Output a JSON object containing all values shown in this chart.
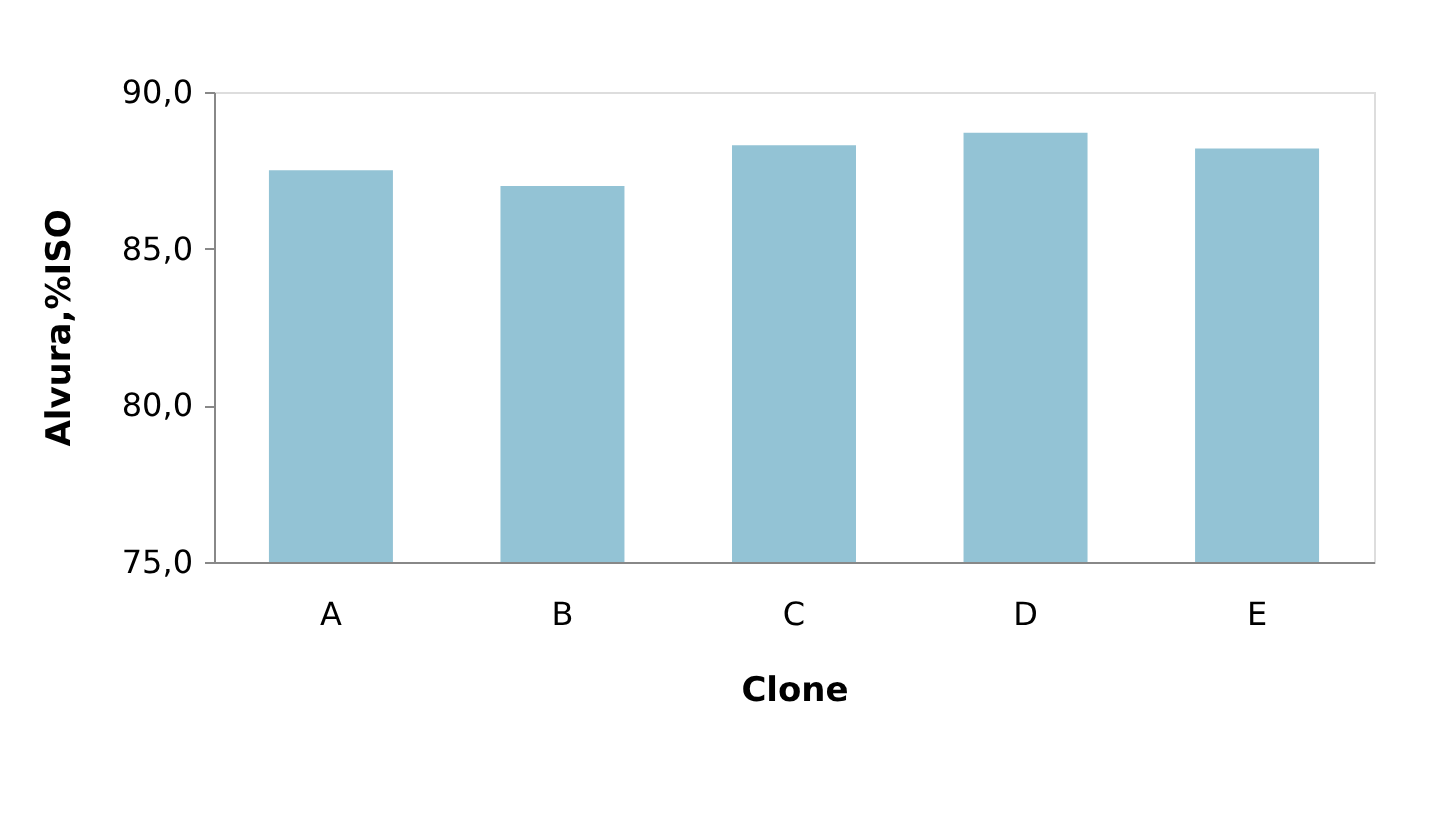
{
  "chart_data": {
    "type": "bar",
    "xlabel": "Clone",
    "ylabel": "Alvura,%ISO",
    "categories": [
      "A",
      "B",
      "C",
      "D",
      "E"
    ],
    "values": [
      87.5,
      87.0,
      88.3,
      88.7,
      88.2
    ],
    "color": "#93c3d5",
    "ylim": [
      75,
      90
    ],
    "yticks": [
      {
        "value": 75,
        "label": "75,0"
      },
      {
        "value": 80,
        "label": "80,0"
      },
      {
        "value": 85,
        "label": "85,0"
      },
      {
        "value": 90,
        "label": "90,0"
      }
    ],
    "grid": false
  }
}
